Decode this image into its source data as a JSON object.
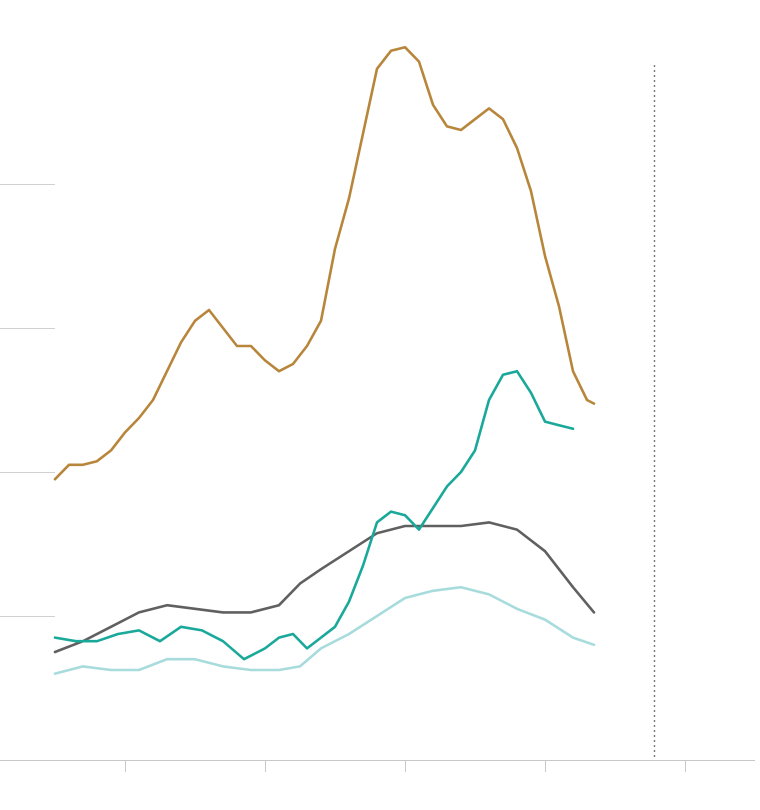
{
  "chart_data": {
    "type": "line",
    "title": "",
    "xlabel": "",
    "ylabel": "",
    "xlim": [
      0,
      100
    ],
    "ylim": [
      0,
      100
    ],
    "y_gridlines": [
      20,
      40,
      60,
      80
    ],
    "x_ticks": [
      10,
      30,
      50,
      70,
      90
    ],
    "marker_x": 85.6,
    "grid": true,
    "series": [
      {
        "color": "#b8863b",
        "values": [
          [
            0,
            39
          ],
          [
            2,
            41
          ],
          [
            4,
            41
          ],
          [
            6,
            41.5
          ],
          [
            8,
            43
          ],
          [
            10,
            45.5
          ],
          [
            12,
            47.5
          ],
          [
            14,
            50
          ],
          [
            16,
            54
          ],
          [
            18,
            58
          ],
          [
            20,
            61
          ],
          [
            22,
            62.5
          ],
          [
            24,
            60
          ],
          [
            26,
            57.5
          ],
          [
            28,
            57.5
          ],
          [
            30,
            55.5
          ],
          [
            32,
            54
          ],
          [
            34,
            55
          ],
          [
            36,
            57.5
          ],
          [
            38,
            61
          ],
          [
            40,
            71
          ],
          [
            42,
            78
          ],
          [
            44,
            87
          ],
          [
            46,
            96
          ],
          [
            48,
            98.5
          ],
          [
            50,
            99
          ],
          [
            52,
            97
          ],
          [
            54,
            91
          ],
          [
            56,
            88
          ],
          [
            58,
            87.5
          ],
          [
            60,
            89
          ],
          [
            62,
            90.5
          ],
          [
            64,
            89
          ],
          [
            66,
            85
          ],
          [
            68,
            79
          ],
          [
            70,
            70
          ],
          [
            72,
            63
          ],
          [
            74,
            54
          ],
          [
            76,
            50
          ],
          [
            77,
            49.5
          ]
        ]
      },
      {
        "color": "#1aa89a",
        "values": [
          [
            0,
            17
          ],
          [
            3,
            16.5
          ],
          [
            6,
            16.5
          ],
          [
            9,
            17.5
          ],
          [
            12,
            18
          ],
          [
            15,
            16.5
          ],
          [
            18,
            18.5
          ],
          [
            21,
            18
          ],
          [
            24,
            16.5
          ],
          [
            27,
            14
          ],
          [
            30,
            15.5
          ],
          [
            32,
            17
          ],
          [
            34,
            17.5
          ],
          [
            36,
            15.5
          ],
          [
            38,
            17
          ],
          [
            40,
            18.5
          ],
          [
            42,
            22
          ],
          [
            44,
            27
          ],
          [
            46,
            33
          ],
          [
            48,
            34.5
          ],
          [
            50,
            34
          ],
          [
            52,
            32
          ],
          [
            54,
            35
          ],
          [
            56,
            38
          ],
          [
            58,
            40
          ],
          [
            60,
            43
          ],
          [
            62,
            50
          ],
          [
            64,
            53.5
          ],
          [
            66,
            54
          ],
          [
            68,
            51
          ],
          [
            70,
            47
          ],
          [
            72,
            46.5
          ],
          [
            74,
            46
          ]
        ]
      },
      {
        "color": "#606060",
        "values": [
          [
            0,
            15
          ],
          [
            4,
            16.5
          ],
          [
            8,
            18.5
          ],
          [
            12,
            20.5
          ],
          [
            16,
            21.5
          ],
          [
            20,
            21
          ],
          [
            24,
            20.5
          ],
          [
            28,
            20.5
          ],
          [
            32,
            21.5
          ],
          [
            35,
            24.5
          ],
          [
            38,
            26.5
          ],
          [
            42,
            29
          ],
          [
            46,
            31.5
          ],
          [
            50,
            32.5
          ],
          [
            54,
            32.5
          ],
          [
            58,
            32.5
          ],
          [
            62,
            33
          ],
          [
            66,
            32
          ],
          [
            70,
            29
          ],
          [
            74,
            24
          ],
          [
            77,
            20.5
          ]
        ]
      },
      {
        "color": "#a8dcdc",
        "values": [
          [
            0,
            12
          ],
          [
            4,
            13
          ],
          [
            8,
            12.5
          ],
          [
            12,
            12.5
          ],
          [
            16,
            14
          ],
          [
            20,
            14
          ],
          [
            24,
            13
          ],
          [
            28,
            12.5
          ],
          [
            32,
            12.5
          ],
          [
            35,
            13
          ],
          [
            38,
            15.5
          ],
          [
            42,
            17.5
          ],
          [
            46,
            20
          ],
          [
            50,
            22.5
          ],
          [
            54,
            23.5
          ],
          [
            58,
            24
          ],
          [
            62,
            23
          ],
          [
            66,
            21
          ],
          [
            70,
            19.5
          ],
          [
            74,
            17
          ],
          [
            77,
            16
          ]
        ]
      }
    ]
  }
}
